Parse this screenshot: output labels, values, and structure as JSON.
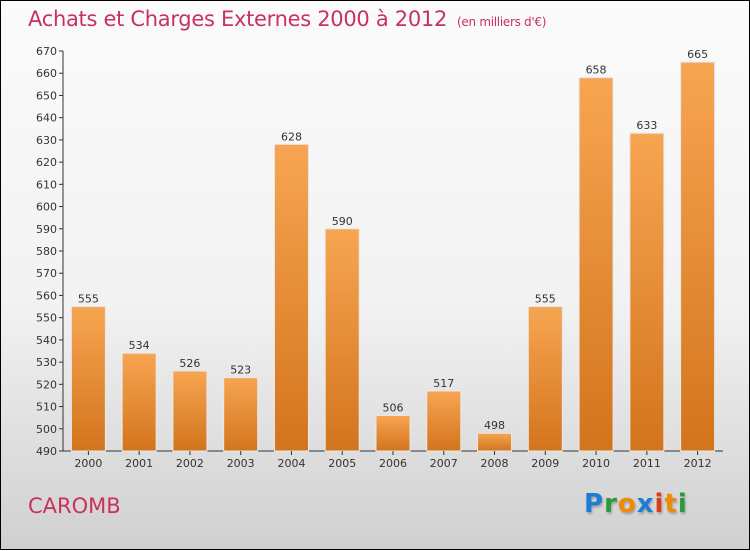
{
  "chart_data": {
    "type": "bar",
    "title": "Achats et Charges Externes 2000 à 2012",
    "unit_label": "(en milliers d'€)",
    "categories": [
      "2000",
      "2001",
      "2002",
      "2003",
      "2004",
      "2005",
      "2006",
      "2007",
      "2008",
      "2009",
      "2010",
      "2011",
      "2012"
    ],
    "values": [
      555,
      534,
      526,
      523,
      628,
      590,
      506,
      517,
      498,
      555,
      658,
      633,
      665
    ],
    "ylim": [
      490,
      670
    ],
    "ytick_step": 10,
    "xlabel": "",
    "ylabel": "",
    "grid": false,
    "bar_color": "#f0913a"
  },
  "commune": "CAROMB",
  "logo": {
    "letters": [
      "P",
      "r",
      "o",
      "x",
      "i",
      "t",
      "i"
    ],
    "colors": [
      "#1a7fd4",
      "#2a9a3a",
      "#f08a00",
      "#1a7fd4",
      "#e03a1a",
      "#f08a00",
      "#2a9a3a"
    ]
  }
}
